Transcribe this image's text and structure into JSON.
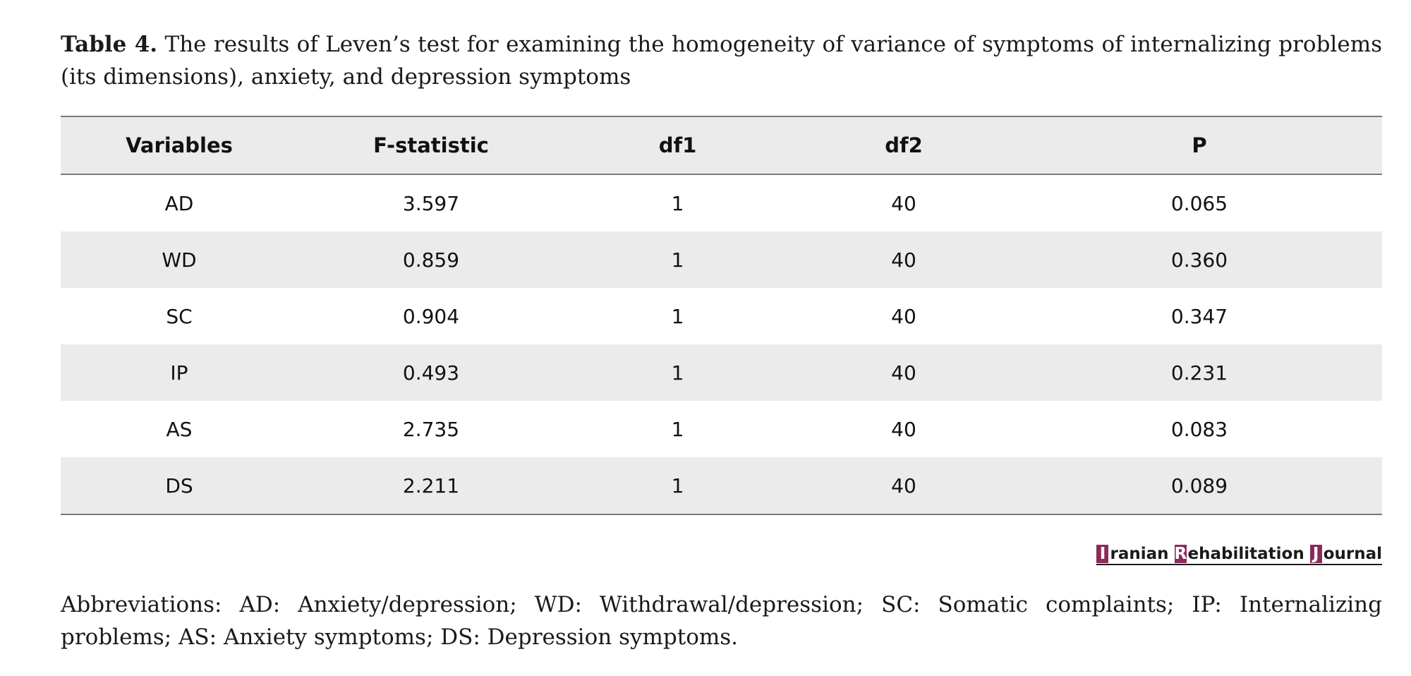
{
  "caption": {
    "label": "Table 4.",
    "text": " The results of Leven’s test for examining the homogeneity of variance of symptoms of internalizing problems (its dimensions), anxiety, and depression symptoms"
  },
  "table": {
    "headers": [
      "Variables",
      "F-statistic",
      "df1",
      "df2",
      "P"
    ],
    "rows": [
      [
        "AD",
        "3.597",
        "1",
        "40",
        "0.065"
      ],
      [
        "WD",
        "0.859",
        "1",
        "40",
        "0.360"
      ],
      [
        "SC",
        "0.904",
        "1",
        "40",
        "0.347"
      ],
      [
        "IP",
        "0.493",
        "1",
        "40",
        "0.231"
      ],
      [
        "AS",
        "2.735",
        "1",
        "40",
        "0.083"
      ],
      [
        "DS",
        "2.211",
        "1",
        "40",
        "0.089"
      ]
    ]
  },
  "logo": {
    "text": "Iranian Rehabilitation Journal",
    "accent_color": "#8b2a5b"
  },
  "footnote": "Abbreviations: AD: Anxiety/depression; WD: Withdrawal/depression; SC: Somatic complaints; IP: Internalizing problems; AS: Anxiety symptoms; DS: Depression symptoms."
}
